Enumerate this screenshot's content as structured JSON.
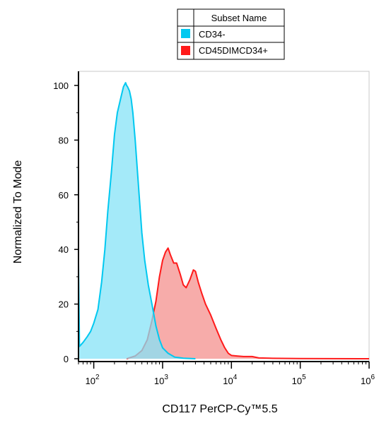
{
  "chart_data": {
    "type": "area",
    "title": "",
    "xlabel": "CD117  PerCP-Cy™5.5",
    "ylabel": "Normalized To Mode",
    "x_scale": "log",
    "xlim": [
      60,
      1000000
    ],
    "ylim": [
      0,
      100
    ],
    "grid": false,
    "legend": {
      "header": "Subset Name",
      "placement": "top-center"
    },
    "x_ticks": [
      {
        "value": 100,
        "base": "10",
        "exp": "2"
      },
      {
        "value": 1000,
        "base": "10",
        "exp": "3"
      },
      {
        "value": 10000,
        "base": "10",
        "exp": "4"
      },
      {
        "value": 100000,
        "base": "10",
        "exp": "5"
      },
      {
        "value": 1000000,
        "base": "10",
        "exp": "6"
      }
    ],
    "y_ticks": [
      "0",
      "20",
      "40",
      "60",
      "80",
      "100"
    ],
    "series": [
      {
        "name": "CD34-",
        "color": "#00c8f0",
        "fill": "#86e3f7",
        "x": [
          60,
          62,
          70,
          80,
          90,
          100,
          115,
          130,
          145,
          160,
          180,
          200,
          220,
          250,
          270,
          290,
          300,
          310,
          330,
          350,
          370,
          400,
          450,
          500,
          550,
          620,
          700,
          800,
          900,
          1000,
          1200,
          1500,
          2000,
          3000
        ],
        "y": [
          35,
          4.5,
          6,
          8,
          10,
          13,
          18,
          28,
          40,
          54,
          68,
          82,
          90,
          96,
          99.5,
          101,
          100,
          99.5,
          98,
          95,
          90,
          80,
          62,
          46,
          36,
          27,
          20,
          12,
          7,
          4,
          2,
          0.6,
          0.2,
          0
        ]
      },
      {
        "name": "CD45DIMCD34+",
        "color": "#ff1a1a",
        "fill": "#f7a8a5",
        "x": [
          300,
          400,
          500,
          600,
          700,
          800,
          900,
          1000,
          1100,
          1200,
          1300,
          1450,
          1600,
          1800,
          2000,
          2200,
          2500,
          2800,
          3000,
          3300,
          3700,
          4200,
          5000,
          6000,
          7000,
          8000,
          9000,
          10000,
          12000,
          15000,
          20000,
          25000,
          40000,
          100000,
          1000000
        ],
        "y": [
          0,
          1,
          3,
          7,
          14,
          21,
          30,
          36,
          39,
          40.5,
          38,
          35,
          35,
          31,
          27,
          26,
          29,
          32.5,
          32,
          28,
          24,
          20,
          16,
          11,
          7,
          4,
          2,
          1.2,
          1,
          0.8,
          0.8,
          0.3,
          0.15,
          0.05,
          0
        ]
      }
    ]
  }
}
